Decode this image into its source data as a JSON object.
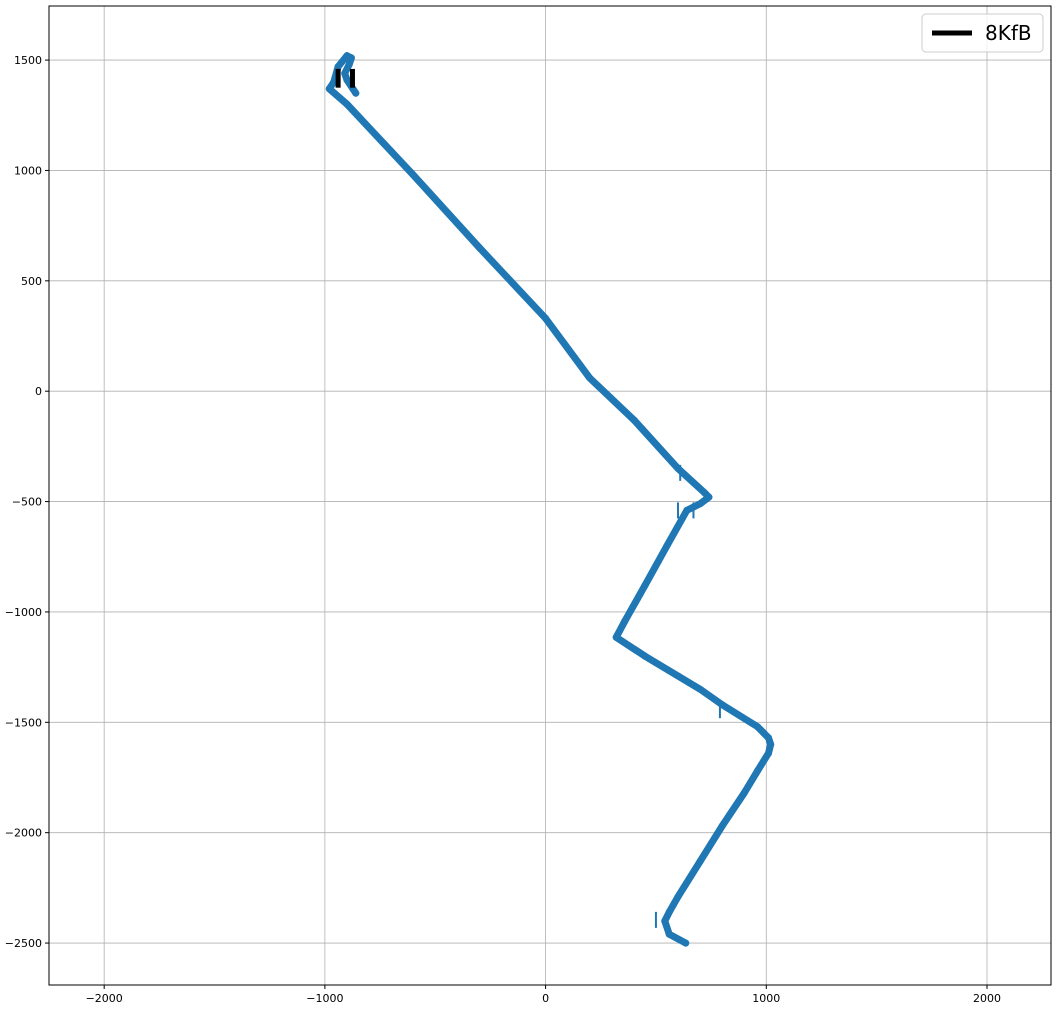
{
  "chart_data": {
    "type": "line",
    "title": "",
    "xlabel": "",
    "ylabel": "",
    "xlim": [
      -2250,
      2290
    ],
    "ylim": [
      -2690,
      1745
    ],
    "x_ticks": [
      -2000,
      -1000,
      0,
      1000,
      2000
    ],
    "y_ticks": [
      1500,
      1000,
      500,
      0,
      -500,
      -1000,
      -1500,
      -2000,
      -2500
    ],
    "x_tick_labels": [
      "−2000",
      "−1000",
      "0",
      "1000",
      "2000"
    ],
    "y_tick_labels": [
      "1500",
      "1000",
      "500",
      "0",
      "−500",
      "−1000",
      "−1500",
      "−2000",
      "−2500"
    ],
    "grid": true,
    "legend_position": "top-right",
    "legend": [
      {
        "label": "8KfB",
        "color": "#000000"
      }
    ],
    "series": [
      {
        "color": "#1f77b4",
        "marker": "point",
        "x": [
          635,
          560,
          540,
          560,
          600,
          700,
          800,
          900,
          960,
          1010,
          1020,
          1010,
          960,
          800,
          700,
          600,
          450,
          320,
          360,
          450,
          550,
          640,
          700,
          740,
          720,
          600,
          400,
          200,
          0,
          -300,
          -600,
          -900,
          -980,
          -960,
          -940,
          -900,
          -880,
          -890,
          -910,
          -900,
          -860
        ],
        "y": [
          -2500,
          -2460,
          -2400,
          -2360,
          -2290,
          -2130,
          -1970,
          -1820,
          -1720,
          -1640,
          -1600,
          -1570,
          -1520,
          -1420,
          -1350,
          -1290,
          -1200,
          -1115,
          -1040,
          -880,
          -700,
          -540,
          -510,
          -480,
          -460,
          -350,
          -130,
          60,
          330,
          650,
          980,
          1300,
          1370,
          1400,
          1470,
          1520,
          1510,
          1480,
          1440,
          1410,
          1350
        ],
        "outliers": [
          {
            "x": 600,
            "y": -540
          },
          {
            "x": 670,
            "y": -540
          },
          {
            "x": 500,
            "y": -2395
          },
          {
            "x": 790,
            "y": -1445
          },
          {
            "x": 610,
            "y": -370
          }
        ]
      },
      {
        "name": "8KfB",
        "color": "#000000",
        "x": [
          -940,
          -940,
          -875,
          -875
        ],
        "y": [
          1375,
          1460,
          1375,
          1460
        ]
      }
    ]
  }
}
